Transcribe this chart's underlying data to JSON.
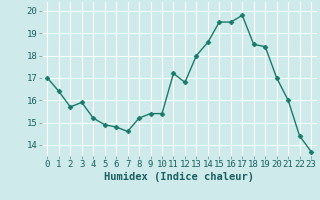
{
  "x": [
    0,
    1,
    2,
    3,
    4,
    5,
    6,
    7,
    8,
    9,
    10,
    11,
    12,
    13,
    14,
    15,
    16,
    17,
    18,
    19,
    20,
    21,
    22,
    23
  ],
  "y": [
    17.0,
    16.4,
    15.7,
    15.9,
    15.2,
    14.9,
    14.8,
    14.6,
    15.2,
    15.4,
    15.4,
    17.2,
    16.8,
    18.0,
    18.6,
    19.5,
    19.5,
    19.8,
    18.5,
    18.4,
    17.0,
    16.0,
    14.4,
    13.7
  ],
  "line_color": "#1a7a6a",
  "marker": "D",
  "marker_size": 2.5,
  "bg_color": "#ceeaea",
  "grid_color": "#ffffff",
  "xlabel": "Humidex (Indice chaleur)",
  "ylim": [
    13.5,
    20.4
  ],
  "xlim": [
    -0.5,
    23.5
  ],
  "yticks": [
    14,
    15,
    16,
    17,
    18,
    19,
    20
  ],
  "xticks": [
    0,
    1,
    2,
    3,
    4,
    5,
    6,
    7,
    8,
    9,
    10,
    11,
    12,
    13,
    14,
    15,
    16,
    17,
    18,
    19,
    20,
    21,
    22,
    23
  ],
  "xlabel_fontsize": 7.5,
  "tick_fontsize": 6.5,
  "line_width": 1.0
}
